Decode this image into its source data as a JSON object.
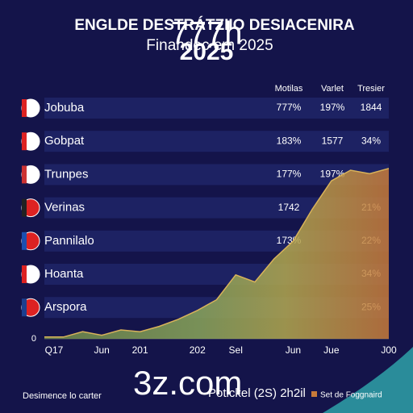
{
  "title": "ENGLDE DESTRÁTZIIO DESIACENIRA",
  "subtitle": "Finandec          em 2025",
  "overlay": [
    "777h",
    "2025"
  ],
  "columns": [
    "Motilas",
    "Varlet",
    "Tresier"
  ],
  "rows": [
    {
      "name": "Jobuba",
      "cells": [
        "777%",
        "197%",
        "1844"
      ]
    },
    {
      "name": "Gobpat",
      "cells": [
        "183%",
        "1577",
        "34%"
      ]
    },
    {
      "name": "Trunpes",
      "cells": [
        "177%",
        "197%",
        null
      ]
    },
    {
      "name": "Verinas",
      "cells": [
        "1742",
        null,
        "21%"
      ]
    },
    {
      "name": "Pannilalo",
      "cells": [
        "173%",
        null,
        "22%"
      ]
    },
    {
      "name": "Hoanta",
      "cells": [
        null,
        null,
        "34%"
      ]
    },
    {
      "name": "Arspora",
      "cells": [
        null,
        null,
        "25%"
      ]
    }
  ],
  "chart_data": {
    "type": "area",
    "categories": [
      "Q17",
      null,
      null,
      "Jun",
      null,
      "201",
      null,
      null,
      "202",
      null,
      "Sel",
      null,
      null,
      "Jun",
      null,
      "Jue",
      null,
      null,
      "J00"
    ],
    "values": [
      1,
      1,
      4,
      2,
      5,
      4,
      7,
      11,
      16,
      22,
      36,
      32,
      45,
      55,
      73,
      89,
      95,
      93,
      96
    ],
    "ylim": [
      0,
      100
    ],
    "yticks": [
      0
    ]
  },
  "footer": {
    "left": "Desimence lo carter",
    "brand": "3z.com",
    "middle": "Potickel (2S) 2h2il",
    "right": "Set de Foggnaird"
  }
}
